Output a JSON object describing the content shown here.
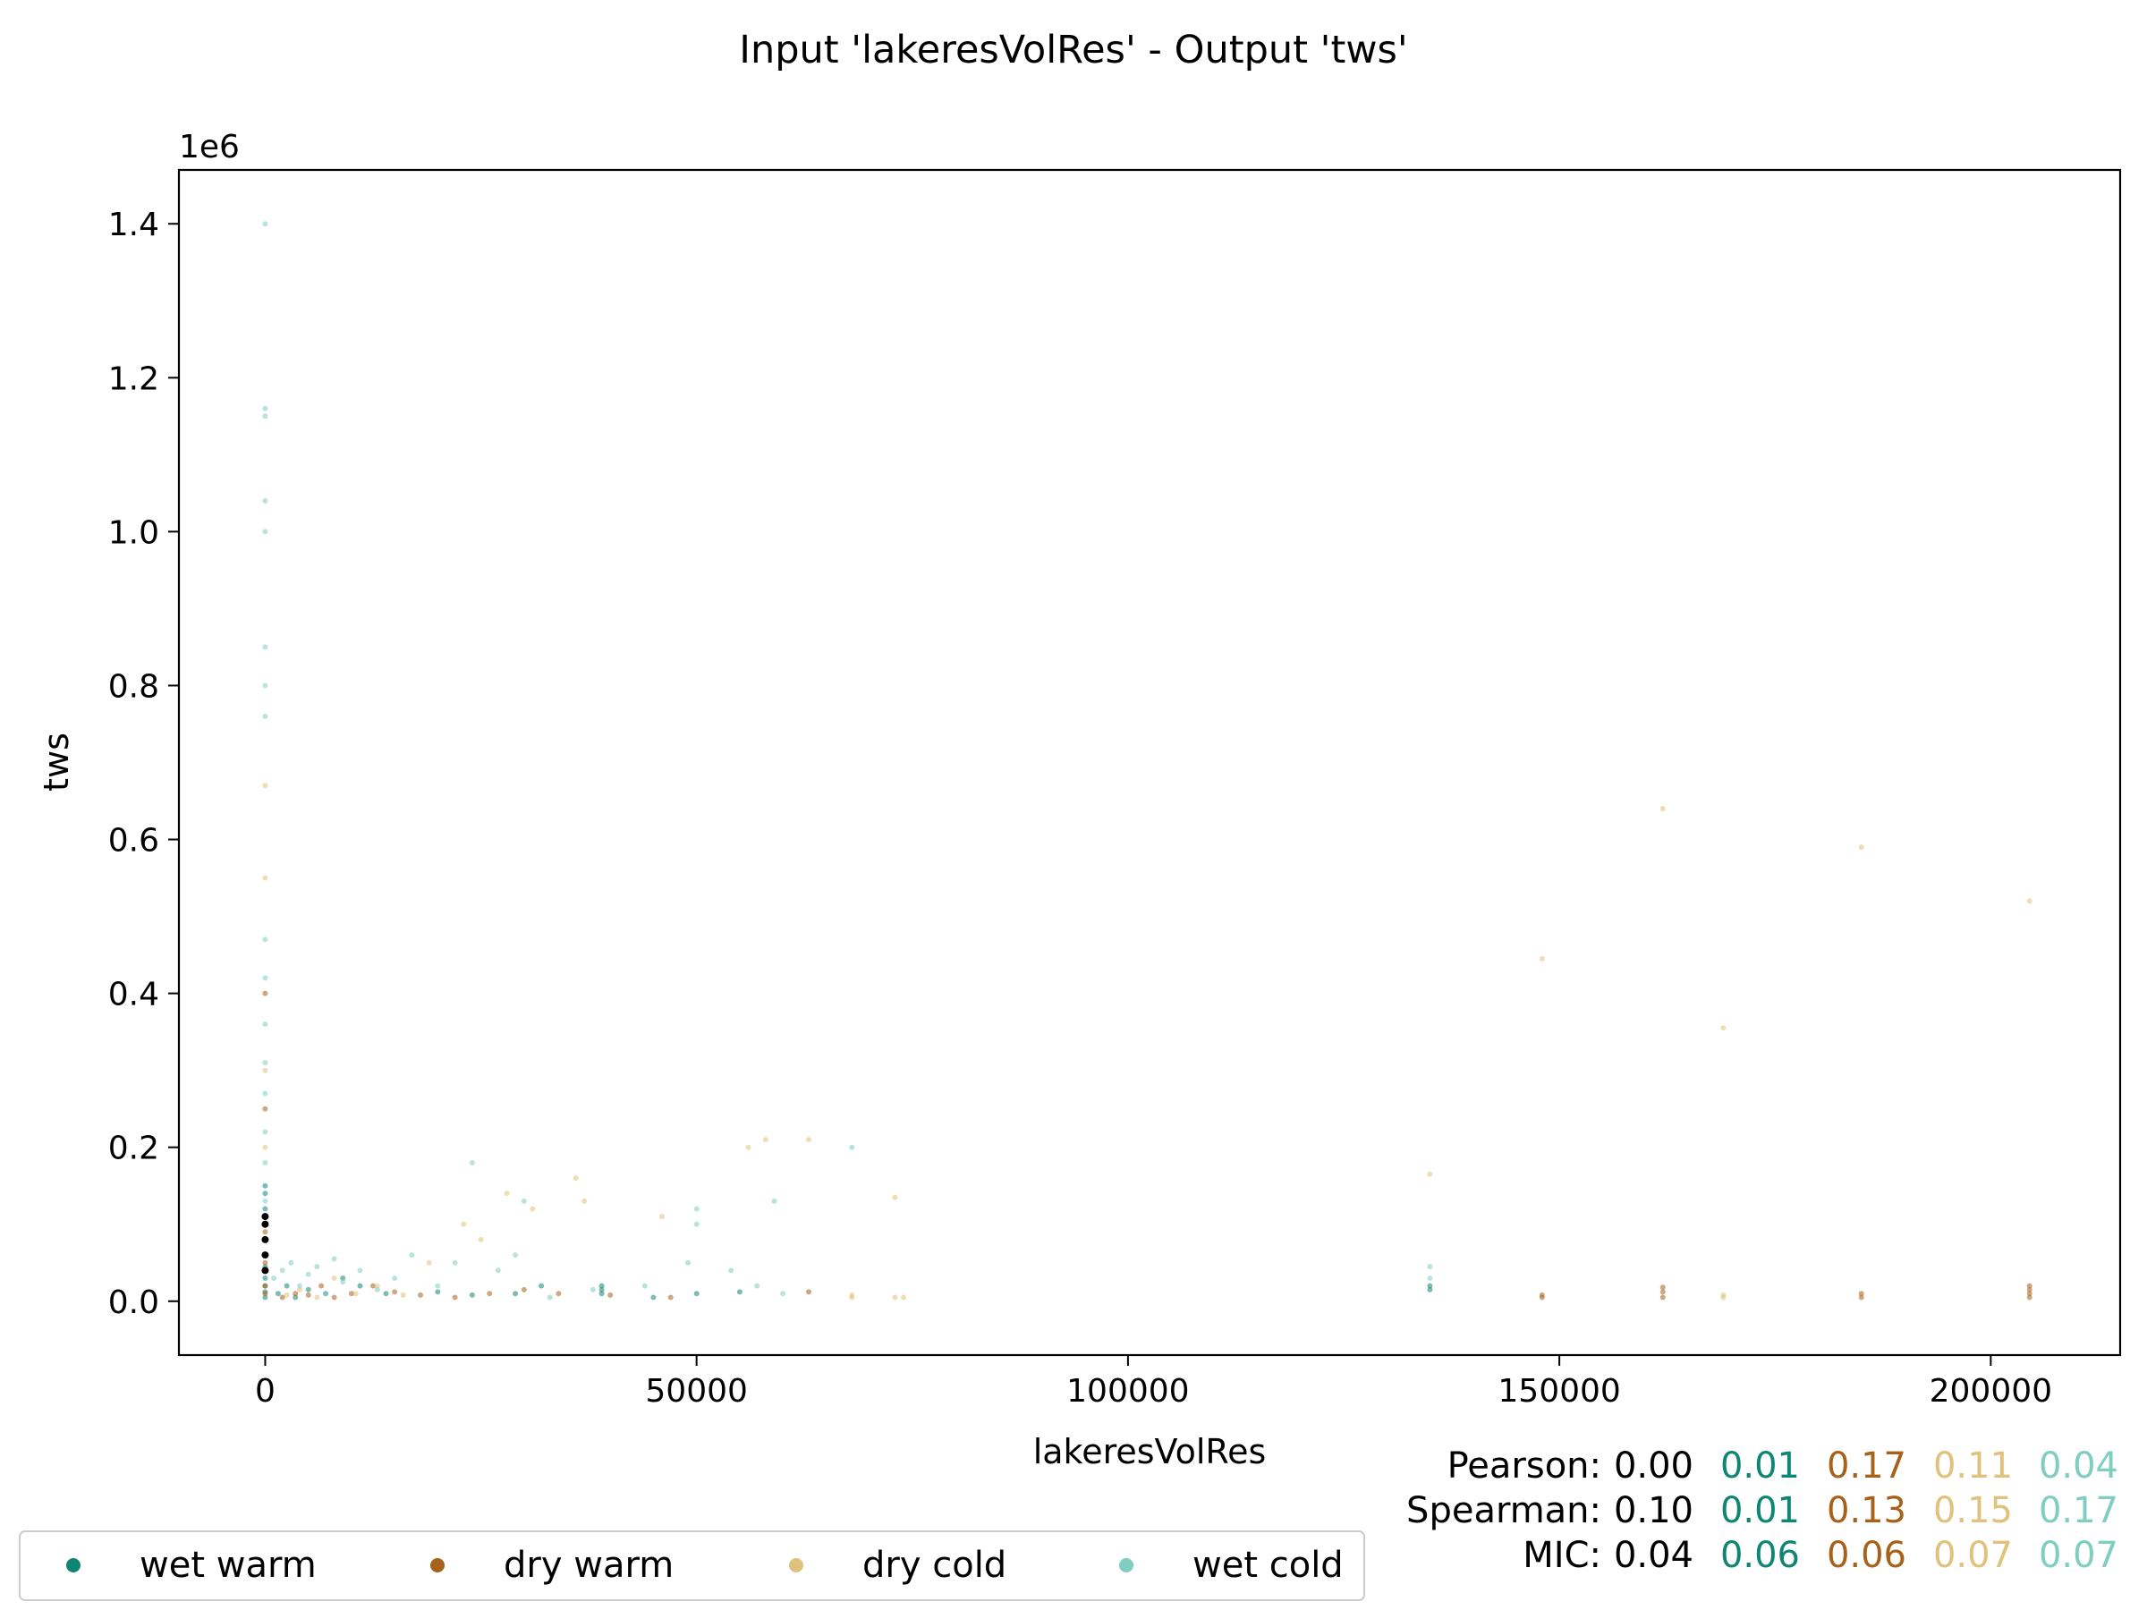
{
  "chart_data": {
    "type": "scatter",
    "title": "Input 'lakeresVolRes' - Output 'tws'",
    "xlabel": "lakeresVolRes",
    "ylabel": "tws",
    "y_offset_label": "1e6",
    "xlim": [
      -10000,
      215000
    ],
    "ylim": [
      -0.07,
      1.47
    ],
    "xticks": [
      0,
      50000,
      100000,
      150000,
      200000
    ],
    "xtick_labels": [
      "0",
      "50000",
      "100000",
      "150000",
      "200000"
    ],
    "yticks": [
      0.0,
      0.2,
      0.4,
      0.6,
      0.8,
      1.0,
      1.2,
      1.4
    ],
    "ytick_labels": [
      "0.0",
      "0.2",
      "0.4",
      "0.6",
      "0.8",
      "1.0",
      "1.2",
      "1.4"
    ],
    "grid": false,
    "legend_position": "bottom-left",
    "colors": {
      "wet_warm": "#0f8574",
      "dry_warm": "#a6611a",
      "dry_cold": "#dfc27d",
      "wet_cold": "#80cdc1",
      "overall": "#000000"
    },
    "series": [
      {
        "name": "wet warm",
        "color": "#0f8574",
        "points": [
          [
            0,
            0.005
          ],
          [
            0,
            0.012
          ],
          [
            0,
            0.02
          ],
          [
            0,
            0.03
          ],
          [
            0,
            0.045
          ],
          [
            0,
            0.06
          ],
          [
            0,
            0.08
          ],
          [
            0,
            0.1
          ],
          [
            0,
            0.12
          ],
          [
            0,
            0.14
          ],
          [
            0,
            0.15
          ],
          [
            1500,
            0.01
          ],
          [
            2500,
            0.02
          ],
          [
            3500,
            0.005
          ],
          [
            5000,
            0.015
          ],
          [
            7000,
            0.01
          ],
          [
            9000,
            0.03
          ],
          [
            11000,
            0.02
          ],
          [
            14000,
            0.01
          ],
          [
            20000,
            0.012
          ],
          [
            24000,
            0.008
          ],
          [
            29000,
            0.01
          ],
          [
            32000,
            0.02
          ],
          [
            39000,
            0.02
          ],
          [
            39000,
            0.015
          ],
          [
            39000,
            0.01
          ],
          [
            45000,
            0.005
          ],
          [
            50000,
            0.01
          ],
          [
            55000,
            0.012
          ],
          [
            135000,
            0.02
          ],
          [
            135000,
            0.015
          ]
        ]
      },
      {
        "name": "dry warm",
        "color": "#a6611a",
        "points": [
          [
            0,
            0.01
          ],
          [
            0,
            0.02
          ],
          [
            0,
            0.05
          ],
          [
            0,
            0.09
          ],
          [
            0,
            0.25
          ],
          [
            0,
            0.4
          ],
          [
            2000,
            0.005
          ],
          [
            3500,
            0.01
          ],
          [
            5000,
            0.008
          ],
          [
            6500,
            0.02
          ],
          [
            8000,
            0.005
          ],
          [
            10000,
            0.01
          ],
          [
            12500,
            0.02
          ],
          [
            15000,
            0.012
          ],
          [
            18000,
            0.008
          ],
          [
            22000,
            0.005
          ],
          [
            26000,
            0.01
          ],
          [
            30000,
            0.015
          ],
          [
            34000,
            0.01
          ],
          [
            40000,
            0.008
          ],
          [
            47000,
            0.005
          ],
          [
            63000,
            0.012
          ],
          [
            148000,
            0.008
          ],
          [
            148000,
            0.005
          ],
          [
            162000,
            0.018
          ],
          [
            162000,
            0.012
          ],
          [
            162000,
            0.005
          ],
          [
            185000,
            0.01
          ],
          [
            185000,
            0.005
          ],
          [
            204500,
            0.02
          ],
          [
            204500,
            0.015
          ],
          [
            204500,
            0.01
          ],
          [
            204500,
            0.005
          ]
        ]
      },
      {
        "name": "dry cold",
        "color": "#dfc27d",
        "points": [
          [
            0,
            0.55
          ],
          [
            0,
            0.67
          ],
          [
            0,
            0.3
          ],
          [
            0,
            0.2
          ],
          [
            0,
            0.1
          ],
          [
            2500,
            0.008
          ],
          [
            4000,
            0.015
          ],
          [
            6000,
            0.005
          ],
          [
            8000,
            0.03
          ],
          [
            10500,
            0.01
          ],
          [
            13000,
            0.02
          ],
          [
            16000,
            0.008
          ],
          [
            19000,
            0.05
          ],
          [
            23000,
            0.1
          ],
          [
            25000,
            0.08
          ],
          [
            28000,
            0.14
          ],
          [
            31000,
            0.12
          ],
          [
            36000,
            0.16
          ],
          [
            37000,
            0.13
          ],
          [
            46000,
            0.11
          ],
          [
            56000,
            0.2
          ],
          [
            58000,
            0.21
          ],
          [
            63000,
            0.21
          ],
          [
            68000,
            0.005
          ],
          [
            68000,
            0.008
          ],
          [
            73000,
            0.005
          ],
          [
            73000,
            0.135
          ],
          [
            74000,
            0.005
          ],
          [
            135000,
            0.165
          ],
          [
            148000,
            0.445
          ],
          [
            162000,
            0.64
          ],
          [
            169000,
            0.355
          ],
          [
            169000,
            0.008
          ],
          [
            169000,
            0.005
          ],
          [
            185000,
            0.59
          ],
          [
            204500,
            0.52
          ]
        ]
      },
      {
        "name": "wet cold",
        "color": "#80cdc1",
        "points": [
          [
            0,
            1.4
          ],
          [
            0,
            1.16
          ],
          [
            0,
            1.15
          ],
          [
            0,
            1.04
          ],
          [
            0,
            1.0
          ],
          [
            0,
            0.85
          ],
          [
            0,
            0.8
          ],
          [
            0,
            0.76
          ],
          [
            0,
            0.47
          ],
          [
            0,
            0.42
          ],
          [
            0,
            0.36
          ],
          [
            0,
            0.31
          ],
          [
            0,
            0.27
          ],
          [
            0,
            0.22
          ],
          [
            0,
            0.18
          ],
          [
            0,
            0.13
          ],
          [
            1000,
            0.03
          ],
          [
            2000,
            0.04
          ],
          [
            3000,
            0.05
          ],
          [
            4000,
            0.02
          ],
          [
            5000,
            0.035
          ],
          [
            6000,
            0.045
          ],
          [
            7000,
            0.01
          ],
          [
            8000,
            0.055
          ],
          [
            9000,
            0.025
          ],
          [
            11000,
            0.04
          ],
          [
            13000,
            0.015
          ],
          [
            15000,
            0.03
          ],
          [
            17000,
            0.06
          ],
          [
            20000,
            0.02
          ],
          [
            22000,
            0.05
          ],
          [
            24000,
            0.18
          ],
          [
            27000,
            0.04
          ],
          [
            29000,
            0.06
          ],
          [
            30000,
            0.13
          ],
          [
            33000,
            0.005
          ],
          [
            38000,
            0.015
          ],
          [
            44000,
            0.02
          ],
          [
            49000,
            0.05
          ],
          [
            50000,
            0.12
          ],
          [
            50000,
            0.1
          ],
          [
            54000,
            0.04
          ],
          [
            57000,
            0.02
          ],
          [
            59000,
            0.13
          ],
          [
            60000,
            0.01
          ],
          [
            68000,
            0.2
          ],
          [
            135000,
            0.045
          ],
          [
            135000,
            0.03
          ]
        ]
      },
      {
        "name": "overall",
        "color": "#000000",
        "points": [
          [
            0,
            0.04
          ],
          [
            0,
            0.06
          ],
          [
            0,
            0.08
          ],
          [
            0,
            0.1
          ],
          [
            0,
            0.11
          ]
        ]
      }
    ],
    "stats": [
      {
        "label": "Pearson:",
        "values": [
          "0.00",
          "0.01",
          "0.17",
          "0.11",
          "0.04"
        ]
      },
      {
        "label": "Spearman:",
        "values": [
          "0.10",
          "0.01",
          "0.13",
          "0.15",
          "0.17"
        ]
      },
      {
        "label": "MIC:",
        "values": [
          "0.04",
          "0.06",
          "0.06",
          "0.07",
          "0.07"
        ]
      }
    ],
    "legend": [
      {
        "name": "wet warm",
        "color": "#0f8574"
      },
      {
        "name": "dry warm",
        "color": "#a6611a"
      },
      {
        "name": "dry cold",
        "color": "#dfc27d"
      },
      {
        "name": "wet cold",
        "color": "#80cdc1"
      }
    ]
  }
}
